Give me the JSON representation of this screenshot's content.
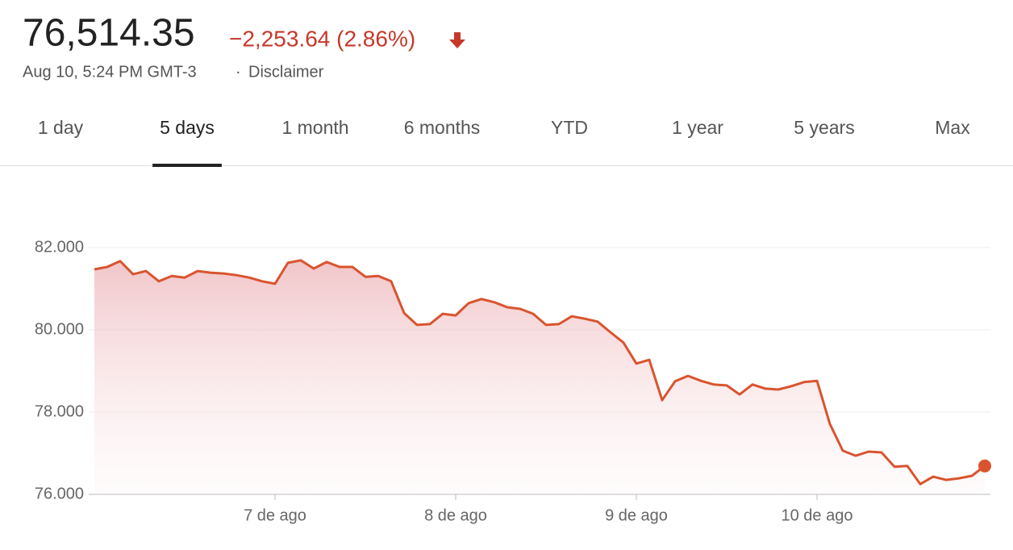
{
  "header": {
    "price": "76,514.35",
    "change": "−2,253.64 (2.86%)",
    "date": "Aug 10, 5:24 PM GMT-3",
    "separator": "·",
    "disclaimer": "Disclaimer"
  },
  "tabs": [
    "1 day",
    "5 days",
    "1 month",
    "6 months",
    "YTD",
    "1 year",
    "5 years",
    "Max"
  ],
  "selected_tab": 1,
  "chart_data": {
    "type": "line",
    "color": "#d9542e",
    "grid": true,
    "values": [
      81470,
      81530,
      81670,
      81350,
      81430,
      81180,
      81310,
      81270,
      81430,
      81390,
      81370,
      81330,
      81270,
      81180,
      81120,
      81630,
      81690,
      81490,
      81650,
      81530,
      81530,
      81290,
      81310,
      81180,
      80410,
      80120,
      80140,
      80390,
      80350,
      80650,
      80750,
      80670,
      80550,
      80510,
      80390,
      80120,
      80140,
      80330,
      80270,
      80200,
      79940,
      79690,
      79180,
      79270,
      78290,
      78750,
      78880,
      78760,
      78670,
      78650,
      78430,
      78670,
      78570,
      78550,
      78630,
      78730,
      78760,
      77710,
      77060,
      76940,
      77040,
      77020,
      76670,
      76690,
      76250,
      76430,
      76350,
      76390,
      76450,
      76690
    ],
    "xlim": [
      0,
      69
    ],
    "xticks": [
      {
        "value": 14,
        "label": "7 de ago"
      },
      {
        "value": 28,
        "label": "8 de ago"
      },
      {
        "value": 42,
        "label": "9 de ago"
      },
      {
        "value": 56,
        "label": "10 de ago"
      }
    ],
    "ylim": [
      76000,
      82000
    ],
    "yticks": [
      {
        "value": 76000,
        "label": "76.000"
      },
      {
        "value": 78000,
        "label": "78.000"
      },
      {
        "value": 80000,
        "label": "80.000"
      },
      {
        "value": 82000,
        "label": "82.000"
      }
    ]
  }
}
